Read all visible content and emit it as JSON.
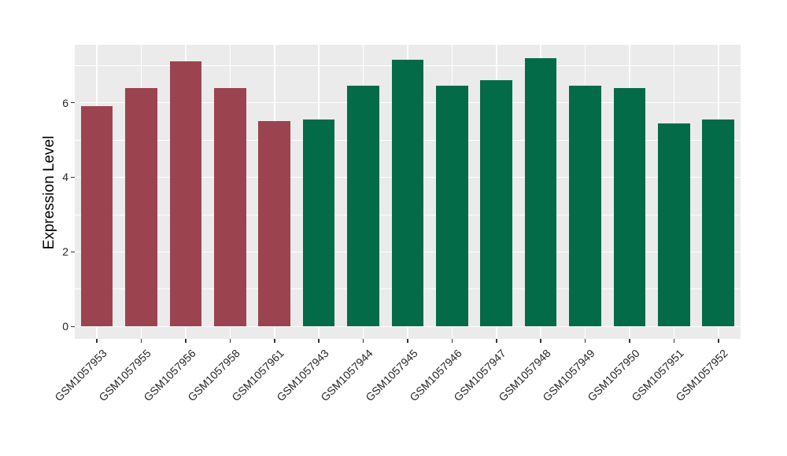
{
  "figure": {
    "background": "#ffffff",
    "panel_background": "#ebebeb",
    "grid_color": "#ffffff",
    "tick_color": "#333333",
    "tick_label_color": "#262626",
    "axis_title_color": "#000000"
  },
  "chart_data": {
    "type": "bar",
    "title": "",
    "xlabel": "",
    "ylabel": "Expression Level",
    "categories": [
      "GSM1057953",
      "GSM1057955",
      "GSM1057956",
      "GSM1057958",
      "GSM1057961",
      "GSM1057943",
      "GSM1057944",
      "GSM1057945",
      "GSM1057946",
      "GSM1057947",
      "GSM1057948",
      "GSM1057949",
      "GSM1057950",
      "GSM1057951",
      "GSM1057952"
    ],
    "values": [
      5.9,
      6.4,
      7.1,
      6.4,
      5.5,
      5.55,
      6.45,
      7.15,
      6.45,
      6.6,
      7.2,
      6.45,
      6.4,
      5.45,
      5.55
    ],
    "bar_colors": [
      "#9b4450",
      "#9b4450",
      "#9b4450",
      "#9b4450",
      "#9b4450",
      "#046b49",
      "#046b49",
      "#046b49",
      "#046b49",
      "#046b49",
      "#046b49",
      "#046b49",
      "#046b49",
      "#046b49",
      "#046b49"
    ],
    "ylim": [
      -0.33,
      7.55
    ],
    "yticks": [
      0,
      2,
      4,
      6
    ],
    "minor_yticks": [
      1,
      3,
      5,
      7
    ],
    "grid": "on",
    "legend": "none",
    "bar_width_frac": 0.72,
    "x_tick_rotation_deg": -45
  }
}
